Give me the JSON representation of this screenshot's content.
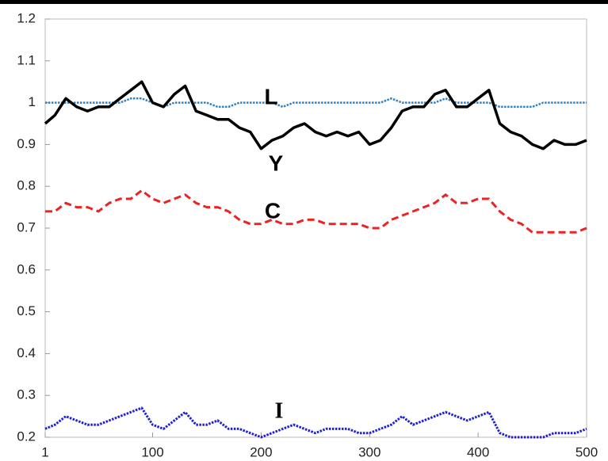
{
  "chart_data": {
    "type": "line",
    "x": [
      1,
      10,
      20,
      30,
      40,
      50,
      60,
      70,
      80,
      90,
      100,
      110,
      120,
      130,
      140,
      150,
      160,
      170,
      180,
      190,
      200,
      210,
      220,
      230,
      240,
      250,
      260,
      270,
      280,
      290,
      300,
      310,
      320,
      330,
      340,
      350,
      360,
      370,
      380,
      390,
      400,
      410,
      420,
      430,
      440,
      450,
      460,
      470,
      480,
      490,
      500
    ],
    "series": [
      {
        "name": "L",
        "color": "#2f80c4",
        "dash": "dotted",
        "width": 2.5,
        "values": [
          1.0,
          1.0,
          1.0,
          1.0,
          1.0,
          1.0,
          1.0,
          1.0,
          1.01,
          1.01,
          1.0,
          0.99,
          1.0,
          1.0,
          1.0,
          1.0,
          0.99,
          0.99,
          1.0,
          1.0,
          1.0,
          1.0,
          0.99,
          1.0,
          1.0,
          1.0,
          1.0,
          1.0,
          1.0,
          1.0,
          1.0,
          1.0,
          1.01,
          1.0,
          1.0,
          1.0,
          1.0,
          1.01,
          1.0,
          1.0,
          1.0,
          1.0,
          0.99,
          0.99,
          0.99,
          0.99,
          1.0,
          1.0,
          1.0,
          1.0,
          1.0
        ]
      },
      {
        "name": "Y",
        "color": "#000000",
        "dash": "solid",
        "width": 3.5,
        "values": [
          0.95,
          0.97,
          1.01,
          0.99,
          0.98,
          0.99,
          0.99,
          1.01,
          1.03,
          1.05,
          1.0,
          0.99,
          1.02,
          1.04,
          0.98,
          0.97,
          0.96,
          0.96,
          0.94,
          0.93,
          0.89,
          0.91,
          0.92,
          0.94,
          0.95,
          0.93,
          0.92,
          0.93,
          0.92,
          0.93,
          0.9,
          0.91,
          0.94,
          0.98,
          0.99,
          0.99,
          1.02,
          1.03,
          0.99,
          0.99,
          1.01,
          1.03,
          0.95,
          0.93,
          0.92,
          0.9,
          0.89,
          0.91,
          0.9,
          0.9,
          0.91
        ]
      },
      {
        "name": "C",
        "color": "#ee2222",
        "dash": "dashed",
        "width": 3,
        "values": [
          0.74,
          0.74,
          0.76,
          0.75,
          0.75,
          0.74,
          0.76,
          0.77,
          0.77,
          0.79,
          0.77,
          0.76,
          0.77,
          0.78,
          0.76,
          0.75,
          0.75,
          0.74,
          0.72,
          0.71,
          0.71,
          0.72,
          0.71,
          0.71,
          0.72,
          0.72,
          0.71,
          0.71,
          0.71,
          0.71,
          0.7,
          0.7,
          0.72,
          0.73,
          0.74,
          0.75,
          0.76,
          0.78,
          0.76,
          0.76,
          0.77,
          0.77,
          0.74,
          0.72,
          0.71,
          0.69,
          0.69,
          0.69,
          0.69,
          0.69,
          0.7
        ]
      },
      {
        "name": "I",
        "color": "#1f1fd8",
        "dash": "dotted",
        "width": 3,
        "values": [
          0.22,
          0.23,
          0.25,
          0.24,
          0.23,
          0.23,
          0.24,
          0.25,
          0.26,
          0.27,
          0.23,
          0.22,
          0.24,
          0.26,
          0.23,
          0.23,
          0.24,
          0.22,
          0.22,
          0.21,
          0.2,
          0.21,
          0.22,
          0.23,
          0.22,
          0.21,
          0.22,
          0.22,
          0.22,
          0.21,
          0.21,
          0.22,
          0.23,
          0.25,
          0.23,
          0.24,
          0.25,
          0.26,
          0.25,
          0.24,
          0.25,
          0.26,
          0.21,
          0.2,
          0.2,
          0.2,
          0.2,
          0.21,
          0.21,
          0.21,
          0.22
        ]
      }
    ],
    "xlim": [
      1,
      500
    ],
    "xticks": [
      1,
      100,
      200,
      300,
      400,
      500
    ],
    "ylim": [
      0.2,
      1.2
    ],
    "yticks": [
      0.2,
      0.3,
      0.4,
      0.5,
      0.6,
      0.7,
      0.8,
      0.9,
      1,
      1.1,
      1.2
    ],
    "grid": false
  }
}
